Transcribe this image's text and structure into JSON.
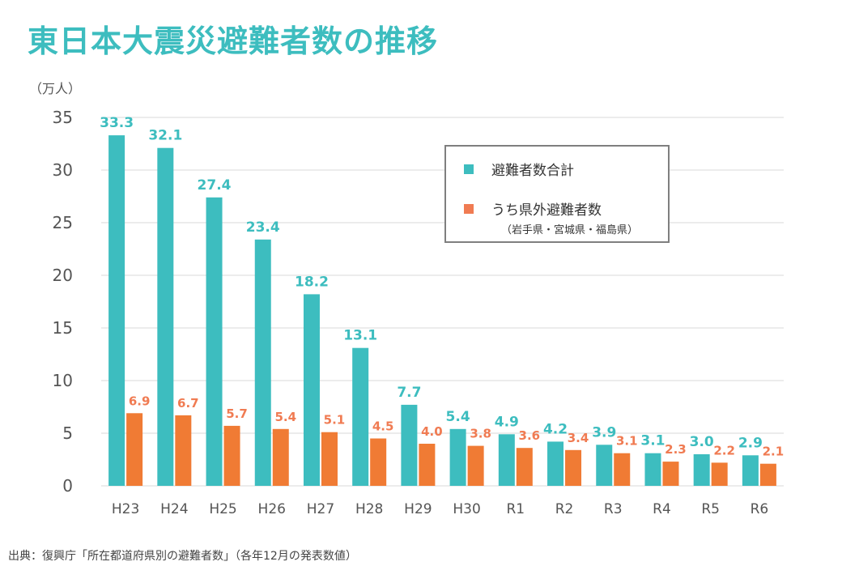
{
  "title": "東日本大震災避難者数の推移",
  "source": "出典：復興庁「所在都道府県別の避難者数」（各年12月の発表数値）",
  "legend": {
    "series1": "避難者数合計",
    "series2": "うち県外避難者数",
    "note": "（岩手県・宮城県・福島県）"
  },
  "colors": {
    "series1": "#3dbdbf",
    "series2": "#f07b34",
    "title": "#3dbdbf"
  },
  "chart_data": {
    "type": "bar",
    "unit_label": "（万人）",
    "categories": [
      "H23",
      "H24",
      "H25",
      "H26",
      "H27",
      "H28",
      "H29",
      "H30",
      "R1",
      "R2",
      "R3",
      "R4",
      "R5",
      "R6"
    ],
    "series": [
      {
        "name": "避難者数合計",
        "values": [
          33.3,
          32.1,
          27.4,
          23.4,
          18.2,
          13.1,
          7.7,
          5.4,
          4.9,
          4.2,
          3.9,
          3.1,
          3.0,
          2.9
        ]
      },
      {
        "name": "うち県外避難者数",
        "values": [
          6.9,
          6.7,
          5.7,
          5.4,
          5.1,
          4.5,
          4.0,
          3.8,
          3.6,
          3.4,
          3.1,
          2.3,
          2.2,
          2.1
        ]
      }
    ],
    "ylim": [
      0,
      35
    ],
    "yticks": [
      0,
      5,
      10,
      15,
      20,
      25,
      30,
      35
    ],
    "grid": true,
    "legend_position": "top-right"
  }
}
